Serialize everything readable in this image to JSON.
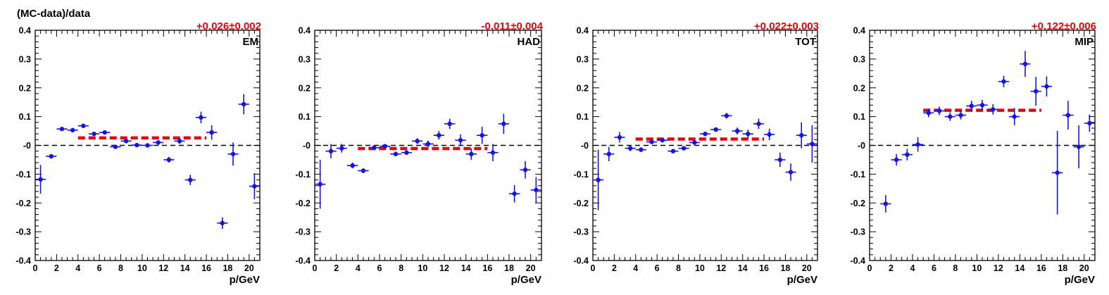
{
  "figure": {
    "ylabel": "(MC-data)/data",
    "colors": {
      "points": "#1414e6",
      "fit": "#e8000b",
      "axes": "#000000",
      "reference": "#000000"
    }
  },
  "chart_data": [
    {
      "type": "scatter",
      "panel": "EM",
      "fit_label": "+0.026±0.002",
      "fit": {
        "value": 0.026,
        "x_range": [
          4,
          16
        ]
      },
      "reference_line": 0,
      "xlabel": "p/GeV",
      "xlim": [
        0,
        21
      ],
      "ylim": [
        -0.4,
        0.4
      ],
      "x_ticks": [
        "0",
        "2",
        "4",
        "6",
        "8",
        "10",
        "12",
        "14",
        "16",
        "18",
        "20"
      ],
      "y_ticks": [
        "-0.4",
        "-0.3",
        "-0.2",
        "-0.1",
        "-0",
        "0.1",
        "0.2",
        "0.3",
        "0.4"
      ],
      "points": [
        {
          "x": 0.5,
          "y": -0.118,
          "err": 0.05
        },
        {
          "x": 1.5,
          "y": -0.038,
          "err": 0.008
        },
        {
          "x": 2.5,
          "y": 0.057,
          "err": 0.005
        },
        {
          "x": 3.5,
          "y": 0.053,
          "err": 0.005
        },
        {
          "x": 4.5,
          "y": 0.068,
          "err": 0.005
        },
        {
          "x": 5.5,
          "y": 0.04,
          "err": 0.005
        },
        {
          "x": 6.5,
          "y": 0.045,
          "err": 0.005
        },
        {
          "x": 7.5,
          "y": -0.005,
          "err": 0.006
        },
        {
          "x": 8.5,
          "y": 0.015,
          "err": 0.006
        },
        {
          "x": 9.5,
          "y": 0.001,
          "err": 0.006
        },
        {
          "x": 10.5,
          "y": 0.0,
          "err": 0.006
        },
        {
          "x": 11.5,
          "y": 0.01,
          "err": 0.008
        },
        {
          "x": 12.5,
          "y": -0.05,
          "err": 0.01
        },
        {
          "x": 13.5,
          "y": 0.015,
          "err": 0.01
        },
        {
          "x": 14.5,
          "y": -0.12,
          "err": 0.018
        },
        {
          "x": 15.5,
          "y": 0.097,
          "err": 0.02
        },
        {
          "x": 16.5,
          "y": 0.045,
          "err": 0.025
        },
        {
          "x": 17.5,
          "y": -0.27,
          "err": 0.02
        },
        {
          "x": 18.5,
          "y": -0.03,
          "err": 0.04
        },
        {
          "x": 19.5,
          "y": 0.143,
          "err": 0.035
        },
        {
          "x": 20.5,
          "y": -0.142,
          "err": 0.045
        }
      ]
    },
    {
      "type": "scatter",
      "panel": "HAD",
      "fit_label": "-0.011±0.004",
      "fit": {
        "value": -0.011,
        "x_range": [
          4,
          16
        ]
      },
      "reference_line": 0,
      "xlabel": "p/GeV",
      "xlim": [
        0,
        21
      ],
      "ylim": [
        -0.4,
        0.4
      ],
      "x_ticks": [
        "0",
        "2",
        "4",
        "6",
        "8",
        "10",
        "12",
        "14",
        "16",
        "18",
        "20"
      ],
      "y_ticks": [
        "-0.4",
        "-0.3",
        "-0.2",
        "-0.1",
        "-0",
        "0.1",
        "0.2",
        "0.3",
        "0.4"
      ],
      "points": [
        {
          "x": 0.5,
          "y": -0.135,
          "err": 0.085
        },
        {
          "x": 1.5,
          "y": -0.02,
          "err": 0.025
        },
        {
          "x": 2.5,
          "y": -0.01,
          "err": 0.015
        },
        {
          "x": 3.5,
          "y": -0.07,
          "err": 0.01
        },
        {
          "x": 4.5,
          "y": -0.088,
          "err": 0.008
        },
        {
          "x": 5.5,
          "y": -0.008,
          "err": 0.006
        },
        {
          "x": 6.5,
          "y": -0.003,
          "err": 0.006
        },
        {
          "x": 7.5,
          "y": -0.03,
          "err": 0.008
        },
        {
          "x": 8.5,
          "y": -0.025,
          "err": 0.008
        },
        {
          "x": 9.5,
          "y": 0.015,
          "err": 0.01
        },
        {
          "x": 10.5,
          "y": 0.005,
          "err": 0.012
        },
        {
          "x": 11.5,
          "y": 0.035,
          "err": 0.015
        },
        {
          "x": 12.5,
          "y": 0.075,
          "err": 0.018
        },
        {
          "x": 13.5,
          "y": 0.018,
          "err": 0.02
        },
        {
          "x": 14.5,
          "y": -0.03,
          "err": 0.02
        },
        {
          "x": 15.5,
          "y": 0.035,
          "err": 0.03
        },
        {
          "x": 16.5,
          "y": -0.025,
          "err": 0.03
        },
        {
          "x": 17.5,
          "y": 0.075,
          "err": 0.035
        },
        {
          "x": 18.5,
          "y": -0.168,
          "err": 0.03
        },
        {
          "x": 19.5,
          "y": -0.085,
          "err": 0.03
        },
        {
          "x": 20.5,
          "y": -0.155,
          "err": 0.045
        }
      ]
    },
    {
      "type": "scatter",
      "panel": "TOT",
      "fit_label": "+0.022±0.003",
      "fit": {
        "value": 0.022,
        "x_range": [
          4,
          16
        ]
      },
      "reference_line": 0,
      "xlabel": "p/GeV",
      "xlim": [
        0,
        21
      ],
      "ylim": [
        -0.4,
        0.4
      ],
      "x_ticks": [
        "0",
        "2",
        "4",
        "6",
        "8",
        "10",
        "12",
        "14",
        "16",
        "18",
        "20"
      ],
      "y_ticks": [
        "-0.4",
        "-0.3",
        "-0.2",
        "-0.1",
        "-0",
        "0.1",
        "0.2",
        "0.3",
        "0.4"
      ],
      "points": [
        {
          "x": 0.5,
          "y": -0.12,
          "err": 0.105
        },
        {
          "x": 1.5,
          "y": -0.03,
          "err": 0.025
        },
        {
          "x": 2.5,
          "y": 0.028,
          "err": 0.018
        },
        {
          "x": 3.5,
          "y": -0.01,
          "err": 0.01
        },
        {
          "x": 4.5,
          "y": -0.015,
          "err": 0.008
        },
        {
          "x": 5.5,
          "y": 0.012,
          "err": 0.006
        },
        {
          "x": 6.5,
          "y": 0.018,
          "err": 0.006
        },
        {
          "x": 7.5,
          "y": -0.02,
          "err": 0.006
        },
        {
          "x": 8.5,
          "y": -0.01,
          "err": 0.006
        },
        {
          "x": 9.5,
          "y": 0.01,
          "err": 0.008
        },
        {
          "x": 10.5,
          "y": 0.04,
          "err": 0.008
        },
        {
          "x": 11.5,
          "y": 0.055,
          "err": 0.008
        },
        {
          "x": 12.5,
          "y": 0.103,
          "err": 0.01
        },
        {
          "x": 13.5,
          "y": 0.05,
          "err": 0.012
        },
        {
          "x": 14.5,
          "y": 0.04,
          "err": 0.015
        },
        {
          "x": 15.5,
          "y": 0.075,
          "err": 0.018
        },
        {
          "x": 16.5,
          "y": 0.038,
          "err": 0.02
        },
        {
          "x": 17.5,
          "y": -0.05,
          "err": 0.025
        },
        {
          "x": 18.5,
          "y": -0.093,
          "err": 0.03
        },
        {
          "x": 19.5,
          "y": 0.035,
          "err": 0.045
        },
        {
          "x": 20.5,
          "y": 0.005,
          "err": 0.065
        }
      ]
    },
    {
      "type": "scatter",
      "panel": "MIP",
      "fit_label": "+0.122±0.006",
      "fit": {
        "value": 0.122,
        "x_range": [
          5,
          16
        ]
      },
      "reference_line": 0,
      "xlabel": "p/GeV",
      "xlim": [
        0,
        21
      ],
      "ylim": [
        -0.4,
        0.4
      ],
      "x_ticks": [
        "0",
        "2",
        "4",
        "6",
        "8",
        "10",
        "12",
        "14",
        "16",
        "18",
        "20"
      ],
      "y_ticks": [
        "-0.4",
        "-0.3",
        "-0.2",
        "-0.1",
        "-0",
        "0.1",
        "0.2",
        "0.3",
        "0.4"
      ],
      "points": [
        {
          "x": 1.5,
          "y": -0.203,
          "err": 0.03
        },
        {
          "x": 2.5,
          "y": -0.05,
          "err": 0.02
        },
        {
          "x": 3.5,
          "y": -0.032,
          "err": 0.02
        },
        {
          "x": 4.5,
          "y": 0.003,
          "err": 0.025
        },
        {
          "x": 5.5,
          "y": 0.113,
          "err": 0.015
        },
        {
          "x": 6.5,
          "y": 0.12,
          "err": 0.015
        },
        {
          "x": 7.5,
          "y": 0.1,
          "err": 0.015
        },
        {
          "x": 8.5,
          "y": 0.105,
          "err": 0.015
        },
        {
          "x": 9.5,
          "y": 0.137,
          "err": 0.018
        },
        {
          "x": 10.5,
          "y": 0.14,
          "err": 0.018
        },
        {
          "x": 11.5,
          "y": 0.125,
          "err": 0.018
        },
        {
          "x": 12.5,
          "y": 0.222,
          "err": 0.02
        },
        {
          "x": 13.5,
          "y": 0.1,
          "err": 0.03
        },
        {
          "x": 14.5,
          "y": 0.283,
          "err": 0.045
        },
        {
          "x": 15.5,
          "y": 0.188,
          "err": 0.05
        },
        {
          "x": 16.5,
          "y": 0.205,
          "err": 0.035
        },
        {
          "x": 17.5,
          "y": -0.095,
          "err": 0.145
        },
        {
          "x": 18.5,
          "y": 0.105,
          "err": 0.05
        },
        {
          "x": 19.5,
          "y": -0.005,
          "err": 0.075
        },
        {
          "x": 20.5,
          "y": 0.077,
          "err": 0.03
        }
      ]
    }
  ]
}
